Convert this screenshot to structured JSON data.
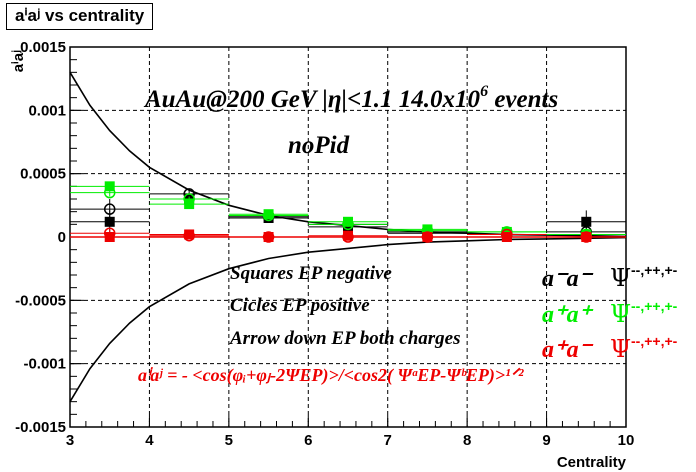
{
  "chart_data": {
    "type": "scatter",
    "title": "aⁱaʲ vs centrality",
    "xlabel": "Centrality",
    "ylabel": "aⁱaʲ",
    "xlim": [
      3,
      10
    ],
    "ylim": [
      -0.0015,
      0.0015
    ],
    "grid": true,
    "x_ticks": [
      "3",
      "4",
      "5",
      "6",
      "7",
      "8",
      "9",
      "10"
    ],
    "y_ticks": [
      "-0.0015",
      "-0.001",
      "-0.0005",
      "0",
      "0.0005",
      "0.001",
      "0.0015"
    ],
    "annotations": {
      "header": "AuAu@200 GeV |η|<1.1 14.0x10",
      "header_exp": "6",
      "header_tail": " events",
      "pid": "noPid",
      "legend_1": "Squares EP negative",
      "legend_2": "Cicles EP positive",
      "legend_3": "Arrow down EP both charges",
      "formula": "aⁱaʲ = - <cos(φᵢ+φⱼ-2ΨEP)>/<cos2( ΨᵃEP-ΨᵇEP)>¹ᐟ²"
    },
    "side_labels": [
      {
        "pair": "a⁻a⁻",
        "psi": "Ψ",
        "sup": "--,++,+-",
        "color": "#000000"
      },
      {
        "pair": "a⁺a⁺",
        "psi": "Ψ",
        "sup": "--,++,+-",
        "color": "#00ee00"
      },
      {
        "pair": "a⁺a⁻",
        "psi": "Ψ",
        "sup": "--,++,+-",
        "color": "#ee0000"
      }
    ],
    "series": [
      {
        "color": "#000000",
        "marker": "square",
        "x": [
          3.5,
          4.5,
          5.5,
          6.5,
          7.5,
          8.5,
          9.5
        ],
        "y": [
          0.00012,
          0.0003,
          0.00015,
          8e-05,
          3e-05,
          2e-05,
          0.00012
        ],
        "err": [
          9e-05,
          4e-05,
          3e-05,
          2e-05,
          2e-05,
          4e-05,
          9e-05
        ]
      },
      {
        "color": "#000000",
        "marker": "circle-open",
        "x": [
          3.5,
          4.5,
          5.5,
          6.5,
          7.5,
          8.5,
          9.5
        ],
        "y": [
          0.00022,
          0.00034,
          0.00016,
          0.0001,
          4e-05,
          2e-05,
          4e-05
        ],
        "err": [
          8e-05,
          4e-05,
          3e-05,
          2e-05,
          2e-05,
          3e-05,
          7e-05
        ]
      },
      {
        "color": "#00ee00",
        "marker": "square",
        "x": [
          3.5,
          4.5,
          5.5,
          6.5,
          7.5,
          8.5,
          9.5
        ],
        "y": [
          0.0004,
          0.00026,
          0.00018,
          0.00012,
          6e-05,
          4e-05,
          2e-05
        ],
        "err": [
          2e-05,
          2e-05,
          2e-05,
          2e-05,
          2e-05,
          2e-05,
          2e-05
        ]
      },
      {
        "color": "#00ee00",
        "marker": "circle-open",
        "x": [
          3.5,
          4.5,
          5.5,
          6.5,
          7.5,
          8.5,
          9.5
        ],
        "y": [
          0.00035,
          0.0003,
          0.00017,
          0.0001,
          5e-05,
          4e-05,
          2e-05
        ],
        "err": [
          3e-05,
          2e-05,
          2e-05,
          2e-05,
          2e-05,
          2e-05,
          2e-05
        ]
      },
      {
        "color": "#ee0000",
        "marker": "square",
        "x": [
          3.5,
          4.5,
          5.5,
          6.5,
          7.5,
          8.5,
          9.5
        ],
        "y": [
          0.0,
          2e-05,
          0.0,
          1e-05,
          0.0,
          0.0,
          0.0
        ],
        "err": [
          3e-05,
          1e-05,
          1e-05,
          1e-05,
          1e-05,
          1e-05,
          1e-05
        ]
      },
      {
        "color": "#ee0000",
        "marker": "circle-open",
        "x": [
          3.5,
          4.5,
          5.5,
          6.5,
          7.5,
          8.5,
          9.5
        ],
        "y": [
          3e-05,
          1e-05,
          0.0,
          0.0,
          0.0,
          2e-05,
          0.0
        ],
        "err": [
          3e-05,
          1e-05,
          1e-05,
          1e-05,
          1e-05,
          1e-05,
          1e-05
        ]
      }
    ],
    "curves": [
      {
        "color": "#000000",
        "x": [
          3.0,
          3.25,
          3.5,
          3.75,
          4.0,
          4.5,
          5.0,
          5.5,
          6.0,
          6.5,
          7.0,
          7.5,
          8.0,
          8.5,
          9.0,
          9.5,
          10.0
        ],
        "y": [
          0.0013,
          0.00104,
          0.00084,
          0.00068,
          0.00055,
          0.00037,
          0.00025,
          0.00017,
          0.00012,
          9e-05,
          6e-05,
          4e-05,
          3e-05,
          2e-05,
          1.5e-05,
          1e-05,
          5e-06
        ]
      },
      {
        "color": "#000000",
        "x": [
          3.0,
          3.25,
          3.5,
          3.75,
          4.0,
          4.5,
          5.0,
          5.5,
          6.0,
          6.5,
          7.0,
          7.5,
          8.0,
          8.5,
          9.0,
          9.5,
          10.0
        ],
        "y": [
          -0.0013,
          -0.00104,
          -0.00084,
          -0.00068,
          -0.00055,
          -0.00037,
          -0.00025,
          -0.00017,
          -0.00012,
          -9e-05,
          -6e-05,
          -4e-05,
          -3e-05,
          -2e-05,
          -1.5e-05,
          -1e-05,
          -5e-06
        ]
      },
      {
        "color": "#ee0000",
        "x": [
          3.0,
          10.0
        ],
        "y": [
          0.0,
          0.0
        ]
      }
    ]
  }
}
